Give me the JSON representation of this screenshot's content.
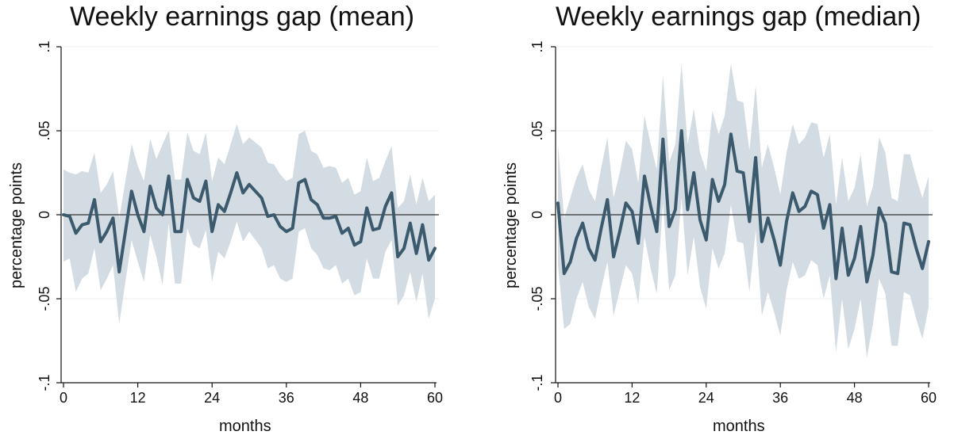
{
  "chart_data": [
    {
      "type": "line",
      "title": "Weekly earnings gap (mean)",
      "xlabel": "months",
      "ylabel": "percentage points",
      "xlim": [
        0,
        60
      ],
      "ylim": [
        -0.1,
        0.1
      ],
      "x_ticks": [
        0,
        12,
        24,
        36,
        48,
        60
      ],
      "x_tick_labels": [
        "0",
        "12",
        "24",
        "36",
        "48",
        "60"
      ],
      "y_ticks": [
        -0.1,
        -0.05,
        0,
        0.05,
        0.1
      ],
      "y_tick_labels": [
        "-.1",
        "-.05",
        "0",
        ".05",
        ".1"
      ],
      "grid": true,
      "colors": {
        "line": "#3c5a6e",
        "band": "#d3dce2",
        "zero": "#333333",
        "grid": "#e8eef2"
      },
      "series": [
        {
          "x": [
            0,
            1,
            2,
            3,
            4,
            5,
            6,
            7,
            8,
            9,
            10,
            11,
            12,
            13,
            14,
            15,
            16,
            17,
            18,
            19,
            20,
            21,
            22,
            23,
            24,
            25,
            26,
            27,
            28,
            29,
            30,
            31,
            32,
            33,
            34,
            35,
            36,
            37,
            38,
            39,
            40,
            41,
            42,
            43,
            44,
            45,
            46,
            47,
            48,
            49,
            50,
            51,
            52,
            53,
            54,
            55,
            56,
            57,
            58,
            59,
            60
          ],
          "y": [
            0,
            -0.001,
            -0.011,
            -0.006,
            -0.005,
            0.009,
            -0.016,
            -0.01,
            -0.002,
            -0.034,
            -0.01,
            0.014,
            0,
            -0.01,
            0.017,
            0.004,
            0,
            0.023,
            -0.01,
            -0.01,
            0.021,
            0.01,
            0.008,
            0.02,
            -0.01,
            0.006,
            0.002,
            0.013,
            0.025,
            0.013,
            0.018,
            0.014,
            0.01,
            -0.001,
            0,
            -0.007,
            -0.01,
            -0.008,
            0.019,
            0.021,
            0.009,
            0.006,
            -0.002,
            -0.002,
            -0.001,
            -0.011,
            -0.008,
            -0.018,
            -0.016,
            0.004,
            -0.009,
            -0.008,
            0.005,
            0.013,
            -0.025,
            -0.02,
            -0.005,
            -0.023,
            -0.006,
            -0.027,
            -0.02
          ],
          "lower": [
            -0.028,
            -0.026,
            -0.046,
            -0.038,
            -0.035,
            -0.02,
            -0.045,
            -0.038,
            -0.03,
            -0.065,
            -0.04,
            -0.015,
            -0.028,
            -0.04,
            -0.012,
            -0.025,
            -0.042,
            -0.005,
            -0.041,
            -0.041,
            -0.008,
            -0.018,
            -0.02,
            -0.009,
            -0.04,
            -0.022,
            -0.026,
            -0.016,
            -0.004,
            -0.016,
            -0.01,
            -0.015,
            -0.02,
            -0.032,
            -0.03,
            -0.038,
            -0.04,
            -0.038,
            -0.01,
            -0.008,
            -0.02,
            -0.024,
            -0.032,
            -0.033,
            -0.03,
            -0.041,
            -0.038,
            -0.048,
            -0.046,
            -0.026,
            -0.038,
            -0.038,
            -0.022,
            -0.015,
            -0.054,
            -0.048,
            -0.034,
            -0.052,
            -0.035,
            -0.062,
            -0.05
          ],
          "upper": [
            0.027,
            0.025,
            0.024,
            0.026,
            0.025,
            0.037,
            0.013,
            0.018,
            0.026,
            -0.002,
            0.02,
            0.042,
            0.029,
            0.02,
            0.045,
            0.033,
            0.042,
            0.05,
            0.021,
            0.021,
            0.049,
            0.038,
            0.036,
            0.049,
            0.02,
            0.034,
            0.03,
            0.042,
            0.054,
            0.042,
            0.046,
            0.043,
            0.04,
            0.031,
            0.03,
            0.024,
            0.02,
            0.022,
            0.048,
            0.05,
            0.038,
            0.036,
            0.028,
            0.029,
            0.028,
            0.019,
            0.022,
            0.012,
            0.014,
            0.034,
            0.02,
            0.022,
            0.032,
            0.041,
            0.004,
            0.008,
            0.024,
            0.006,
            0.022,
            0.008,
            0.012
          ]
        }
      ]
    },
    {
      "type": "line",
      "title": "Weekly earnings gap (median)",
      "xlabel": "months",
      "ylabel": "percentage points",
      "xlim": [
        0,
        60
      ],
      "ylim": [
        -0.1,
        0.1
      ],
      "x_ticks": [
        0,
        12,
        24,
        36,
        48,
        60
      ],
      "x_tick_labels": [
        "0",
        "12",
        "24",
        "36",
        "48",
        "60"
      ],
      "y_ticks": [
        -0.1,
        -0.05,
        0,
        0.05,
        0.1
      ],
      "y_tick_labels": [
        "-.1",
        "-.05",
        "0",
        ".05",
        ".1"
      ],
      "grid": true,
      "colors": {
        "line": "#3c5a6e",
        "band": "#d3dce2",
        "zero": "#333333",
        "grid": "#e8eef2"
      },
      "series": [
        {
          "x": [
            0,
            1,
            2,
            3,
            4,
            5,
            6,
            7,
            8,
            9,
            10,
            11,
            12,
            13,
            14,
            15,
            16,
            17,
            18,
            19,
            20,
            21,
            22,
            23,
            24,
            25,
            26,
            27,
            28,
            29,
            30,
            31,
            32,
            33,
            34,
            35,
            36,
            37,
            38,
            39,
            40,
            41,
            42,
            43,
            44,
            45,
            46,
            47,
            48,
            49,
            50,
            51,
            52,
            53,
            54,
            55,
            56,
            57,
            58,
            59,
            60
          ],
          "y": [
            0.007,
            -0.035,
            -0.028,
            -0.014,
            -0.005,
            -0.02,
            -0.027,
            -0.008,
            0.009,
            -0.025,
            -0.01,
            0.007,
            0.002,
            -0.017,
            0.023,
            0.005,
            -0.01,
            0.045,
            -0.007,
            0.003,
            0.05,
            0.003,
            0.025,
            -0.003,
            -0.015,
            0.021,
            0.008,
            0.018,
            0.048,
            0.026,
            0.025,
            -0.004,
            0.034,
            -0.016,
            -0.002,
            -0.015,
            -0.03,
            -0.004,
            0.013,
            0.002,
            0.005,
            0.014,
            0.012,
            -0.008,
            0.006,
            -0.038,
            -0.008,
            -0.036,
            -0.026,
            -0.007,
            -0.04,
            -0.024,
            0.004,
            -0.005,
            -0.034,
            -0.035,
            -0.005,
            -0.006,
            -0.02,
            -0.032,
            -0.016
          ],
          "lower": [
            -0.03,
            -0.068,
            -0.065,
            -0.05,
            -0.04,
            -0.055,
            -0.062,
            -0.044,
            -0.028,
            -0.06,
            -0.045,
            -0.03,
            -0.035,
            -0.053,
            -0.013,
            -0.032,
            -0.047,
            0.007,
            -0.045,
            -0.036,
            0.01,
            -0.036,
            -0.013,
            -0.043,
            -0.056,
            -0.02,
            -0.032,
            -0.023,
            0.006,
            -0.016,
            -0.017,
            -0.046,
            -0.009,
            -0.06,
            -0.046,
            -0.058,
            -0.072,
            -0.045,
            -0.028,
            -0.038,
            -0.036,
            -0.027,
            -0.03,
            -0.05,
            -0.036,
            -0.082,
            -0.05,
            -0.08,
            -0.068,
            -0.05,
            -0.085,
            -0.065,
            -0.038,
            -0.047,
            -0.078,
            -0.078,
            -0.046,
            -0.048,
            -0.062,
            -0.074,
            -0.055
          ],
          "upper": [
            0.042,
            -0.002,
            0.01,
            0.022,
            0.03,
            0.015,
            0.008,
            0.028,
            0.046,
            0.01,
            0.025,
            0.044,
            0.039,
            0.019,
            0.059,
            0.042,
            0.027,
            0.083,
            0.031,
            0.042,
            0.09,
            0.042,
            0.063,
            0.037,
            0.026,
            0.062,
            0.048,
            0.059,
            0.09,
            0.068,
            0.067,
            0.038,
            0.077,
            0.028,
            0.042,
            0.028,
            0.012,
            0.037,
            0.054,
            0.042,
            0.046,
            0.055,
            0.054,
            0.034,
            0.048,
            0.006,
            0.034,
            0.008,
            0.016,
            0.036,
            0.005,
            0.017,
            0.046,
            0.037,
            0.01,
            0.008,
            0.036,
            0.036,
            0.022,
            0.01,
            0.023
          ]
        }
      ]
    }
  ]
}
